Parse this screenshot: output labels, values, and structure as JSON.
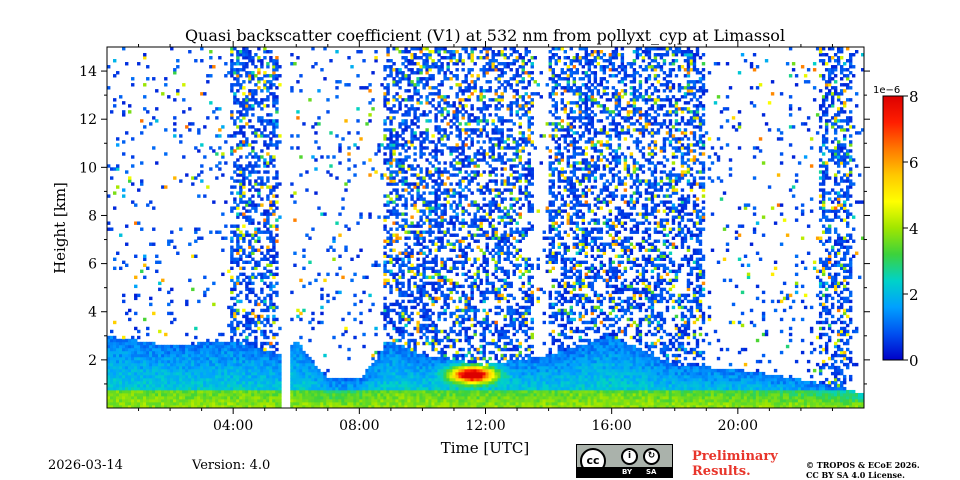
{
  "chart_data": {
    "type": "heatmap",
    "title": "Quasi backscatter coefficient (V1) at 532 nm from pollyxt_cyp at Limassol",
    "xlabel": "Time [UTC]",
    "ylabel": "Height [km]",
    "xlim": [
      0,
      24
    ],
    "ylim": [
      0,
      15
    ],
    "x_ticks": [
      4,
      8,
      12,
      16,
      20
    ],
    "x_tick_labels": [
      "04:00",
      "08:00",
      "12:00",
      "16:00",
      "20:00"
    ],
    "y_ticks": [
      2,
      4,
      6,
      8,
      10,
      12,
      14
    ],
    "y_tick_labels": [
      "2",
      "4",
      "6",
      "8",
      "10",
      "12",
      "14"
    ],
    "colorbar": {
      "min": 0,
      "max": 8,
      "scale_label": "1e−6",
      "ticks": [
        0,
        2,
        4,
        6,
        8
      ],
      "tick_labels": [
        "0",
        "2",
        "4",
        "6",
        "8"
      ],
      "colormap": [
        "#0000c8",
        "#0050f0",
        "#00a0ff",
        "#00d2c8",
        "#3cd23c",
        "#a0e600",
        "#ffff00",
        "#ffc800",
        "#ff7800",
        "#ff1e00",
        "#dc0000"
      ]
    },
    "data_gaps_utc": [
      [
        5.55,
        5.8
      ]
    ],
    "layers": [
      {
        "name": "boundary-layer-top-km",
        "time_utc": [
          0,
          2,
          4,
          5.5,
          6,
          7,
          8,
          9,
          10,
          12,
          14,
          16,
          18,
          20,
          22,
          24
        ],
        "height_km": [
          3.0,
          2.6,
          2.8,
          2.2,
          2.8,
          1.2,
          1.2,
          2.8,
          2.2,
          1.8,
          2.2,
          3.0,
          1.8,
          1.6,
          1.2,
          0.6
        ]
      },
      {
        "name": "aerosol-peak",
        "time_utc": [
          11.6
        ],
        "height_km": [
          1.4
        ],
        "value_e6": [
          7.5
        ]
      }
    ]
  },
  "footer": {
    "date": "2026-03-14",
    "version": "Version: 4.0",
    "preliminary_line1": "Preliminary",
    "preliminary_line2": "Results.",
    "copyright_line1": "© TROPOS & ECoE 2026.",
    "copyright_line2": "CC BY SA 4.0 License.",
    "license_badge": {
      "cc": "cc",
      "by": "BY",
      "sa": "SA"
    }
  },
  "colors": {
    "preliminary": "#e8352b",
    "badge_bg": "#aab2ab"
  }
}
